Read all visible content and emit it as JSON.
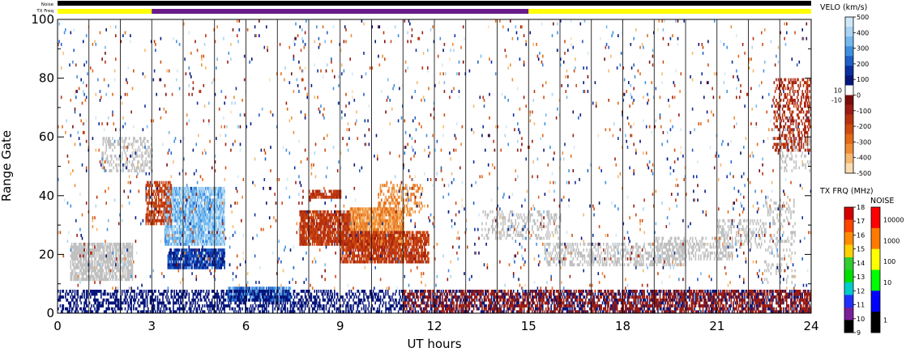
{
  "chart_data": {
    "type": "heatmap",
    "xlabel": "UT hours",
    "ylabel": "Range Gate",
    "xlim": [
      0,
      24
    ],
    "ylim": [
      0,
      100
    ],
    "x_ticks": [
      "0",
      "3",
      "6",
      "9",
      "12",
      "15",
      "18",
      "21",
      "24"
    ],
    "x_tick_values": [
      0,
      3,
      6,
      9,
      12,
      15,
      18,
      21,
      24
    ],
    "y_ticks": [
      "0",
      "20",
      "40",
      "60",
      "80",
      "100"
    ],
    "y_tick_values": [
      0,
      20,
      40,
      60,
      80,
      100
    ],
    "hour_gridlines": true,
    "status_bars": {
      "noise_label": "Noise",
      "txfreq_label": "TX Freq",
      "noise_color": "#000000",
      "txfreq_segments": [
        {
          "start": 0,
          "end": 3,
          "color": "#ffff00"
        },
        {
          "start": 3,
          "end": 15,
          "color": "#6a1b8a"
        },
        {
          "start": 15,
          "end": 24,
          "color": "#ffff00"
        }
      ]
    },
    "velocity_colorbar": {
      "title": "VELO (km/s)",
      "range": [
        -500,
        500
      ],
      "tick_labels": [
        "500",
        "400",
        "300",
        "200",
        "100",
        "0",
        "-100",
        "-200",
        "-300",
        "-400",
        "-500"
      ],
      "tick_values": [
        500,
        400,
        300,
        200,
        100,
        0,
        -100,
        -200,
        -300,
        -400,
        -500
      ],
      "side_labels": [
        "10",
        "-10"
      ],
      "side_values": [
        10,
        -10
      ],
      "colors": [
        "#cfe8f7",
        "#a9d4f3",
        "#74b9ee",
        "#3f8fe0",
        "#1f5fc8",
        "#0b2fa0",
        "#05157a",
        "#ffffff",
        "#7a0c0c",
        "#9c1b12",
        "#b8320f",
        "#d04a10",
        "#e26a18",
        "#ee8d35",
        "#f6b870",
        "#fbdcb2"
      ]
    },
    "txfreq_colorbar": {
      "title": "TX FRQ (MHz)",
      "tick_labels": [
        "18",
        "17",
        "16",
        "15",
        "14",
        "13",
        "12",
        "11",
        "10",
        "9"
      ],
      "tick_values": [
        18,
        17,
        16,
        15,
        14,
        13,
        12,
        11,
        10,
        9
      ],
      "colors": [
        "#d60000",
        "#ff4400",
        "#ff8c00",
        "#ffd000",
        "#32cd32",
        "#00e000",
        "#00cccc",
        "#2030ff",
        "#7a1f9a",
        "#000000"
      ]
    },
    "noise_colorbar": {
      "title": "NOISE",
      "tick_labels": [
        "10000",
        "1000",
        "100",
        "10",
        "1"
      ],
      "tick_values": [
        10000,
        1000,
        100,
        10,
        1
      ],
      "colors": [
        "#ff0000",
        "#ff7a00",
        "#ffff00",
        "#00ff00",
        "#0000ff",
        "#000000"
      ]
    },
    "ground_scatter_color": "#c0c0c0",
    "data_regions": [
      {
        "type": "ground",
        "t0": 0.4,
        "t1": 2.4,
        "g0": 11,
        "g1": 24,
        "density": 0.75
      },
      {
        "type": "ground",
        "t0": 1.4,
        "t1": 3.0,
        "g0": 48,
        "g1": 60,
        "density": 0.35
      },
      {
        "type": "ground",
        "t0": 13.5,
        "t1": 16.0,
        "g0": 25,
        "g1": 35,
        "density": 0.3
      },
      {
        "type": "ground",
        "t0": 15.5,
        "t1": 20.0,
        "g0": 16,
        "g1": 24,
        "density": 0.45
      },
      {
        "type": "ground",
        "t0": 19.0,
        "t1": 21.5,
        "g0": 18,
        "g1": 26,
        "density": 0.4
      },
      {
        "type": "ground",
        "t0": 21.0,
        "t1": 22.5,
        "g0": 22,
        "g1": 32,
        "density": 0.3
      },
      {
        "type": "ground",
        "t0": 22.5,
        "t1": 23.5,
        "g0": 10,
        "g1": 40,
        "density": 0.18
      },
      {
        "type": "ground",
        "t0": 23.0,
        "t1": 24.0,
        "g0": 48,
        "g1": 60,
        "density": 0.25
      },
      {
        "type": "vel",
        "t0": 3.4,
        "t1": 5.3,
        "g0": 23,
        "g1": 43,
        "v0": 280,
        "v1": 460,
        "density": 0.9
      },
      {
        "type": "vel",
        "t0": 3.5,
        "t1": 5.3,
        "g0": 15,
        "g1": 22,
        "v0": 90,
        "v1": 250,
        "density": 0.85
      },
      {
        "type": "vel",
        "t0": 2.8,
        "t1": 3.6,
        "g0": 30,
        "g1": 45,
        "v0": -250,
        "v1": -120,
        "density": 0.6
      },
      {
        "type": "vel",
        "t0": 5.4,
        "t1": 7.4,
        "g0": 4,
        "g1": 9,
        "v0": 180,
        "v1": 340,
        "density": 0.85
      },
      {
        "type": "vel",
        "t0": 7.7,
        "t1": 9.5,
        "g0": 23,
        "g1": 35,
        "v0": -230,
        "v1": -110,
        "density": 0.85
      },
      {
        "type": "vel",
        "t0": 9.3,
        "t1": 11.0,
        "g0": 22,
        "g1": 36,
        "v0": -420,
        "v1": -290,
        "density": 0.9
      },
      {
        "type": "vel",
        "t0": 9.0,
        "t1": 11.8,
        "g0": 17,
        "g1": 28,
        "v0": -230,
        "v1": -110,
        "density": 0.8
      },
      {
        "type": "vel",
        "t0": 10.2,
        "t1": 11.6,
        "g0": 33,
        "g1": 44,
        "v0": -390,
        "v1": -280,
        "density": 0.35
      },
      {
        "type": "vel",
        "t0": 8.0,
        "t1": 9.0,
        "g0": 39,
        "g1": 42,
        "v0": -210,
        "v1": -120,
        "density": 0.7
      },
      {
        "type": "vel",
        "t0": 0.0,
        "t1": 24.0,
        "g0": 0,
        "g1": 8,
        "v0": 20,
        "v1": 60,
        "density": 0.45
      },
      {
        "type": "vel",
        "t0": 11.0,
        "t1": 24.0,
        "g0": 0,
        "g1": 8,
        "v0": -130,
        "v1": -70,
        "density": 0.42
      },
      {
        "type": "vel",
        "t0": 0.0,
        "t1": 24.0,
        "g0": 8,
        "g1": 100,
        "v0": -500,
        "v1": 500,
        "density": 0.025
      },
      {
        "type": "vel",
        "t0": 22.8,
        "t1": 24.0,
        "g0": 55,
        "g1": 80,
        "v0": -200,
        "v1": -80,
        "density": 0.35
      }
    ]
  }
}
